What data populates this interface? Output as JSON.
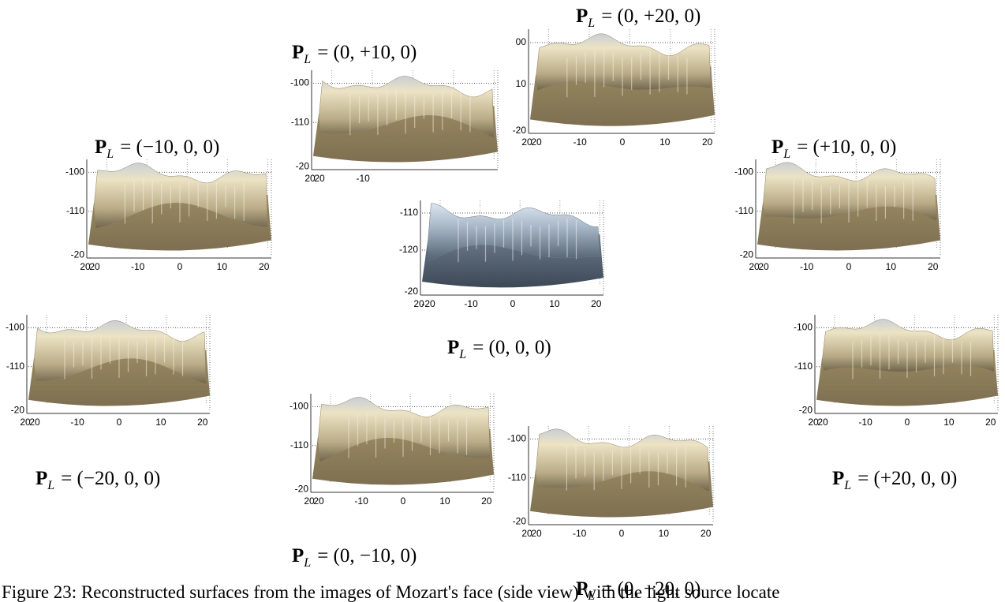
{
  "panels": [
    {
      "label": {
        "symbol": "P",
        "subscript": "L",
        "value": "= (0, +10, 0)"
      },
      "y_labels": [
        "-100",
        "-110",
        "-20"
      ],
      "x_labels": [
        "20",
        "20",
        "-10"
      ]
    },
    {
      "label": {
        "symbol": "P",
        "subscript": "L",
        "value": "= (0, +20, 0)"
      },
      "y_labels": [
        "00",
        "10",
        "-20"
      ],
      "x_labels": [
        "20",
        "20",
        "-10",
        "0",
        "10",
        "20"
      ]
    },
    {
      "label": {
        "symbol": "P",
        "subscript": "L",
        "value": "= (−10, 0, 0)"
      },
      "y_labels": [
        "-100",
        "-110",
        "-20"
      ],
      "x_labels": [
        "20",
        "20",
        "-10",
        "0",
        "10",
        "20"
      ]
    },
    {
      "label": {
        "symbol": "P",
        "subscript": "L",
        "value": "= (+10, 0, 0)"
      },
      "y_labels": [
        "-100",
        "-110",
        "-20"
      ],
      "x_labels": [
        "20",
        "20",
        "-10",
        "0",
        "10",
        "20"
      ]
    },
    {
      "label": {
        "symbol": "P",
        "subscript": "L",
        "value": "= (0, 0, 0)"
      },
      "y_labels": [
        "-110",
        "-120",
        "-20"
      ],
      "x_labels": [
        "20",
        "-20",
        "-10",
        "0",
        "10",
        "20"
      ]
    },
    {
      "label": {
        "symbol": "P",
        "subscript": "L",
        "value": "= (−20, 0, 0)"
      },
      "y_labels": [
        "-100",
        "-110",
        "-20"
      ],
      "x_labels": [
        "20",
        "20",
        "-10",
        "0",
        "10",
        "20"
      ]
    },
    {
      "label": {
        "symbol": "P",
        "subscript": "L",
        "value": "= (+20, 0, 0)"
      },
      "y_labels": [
        "-100",
        "-110",
        "-20"
      ],
      "x_labels": [
        "20",
        "20",
        "-10",
        "0",
        "10",
        "20"
      ]
    },
    {
      "label": {
        "symbol": "P",
        "subscript": "L",
        "value": "= (0, −10, 0)"
      },
      "y_labels": [
        "-100",
        "-110",
        "-20"
      ],
      "x_labels": [
        "20",
        "20",
        "-10",
        "0",
        "10",
        "20"
      ]
    },
    {
      "label": {
        "symbol": "P",
        "subscript": "L",
        "value": "= (0, −20, 0)"
      },
      "y_labels": [
        "-100",
        "-110",
        "-20"
      ],
      "x_labels": [
        "20",
        "20",
        "-10",
        "0",
        "10",
        "20"
      ]
    }
  ],
  "caption": "Figure 23:  Reconstructed surfaces from the images of Mozart's face (side view) with the light source locate"
}
